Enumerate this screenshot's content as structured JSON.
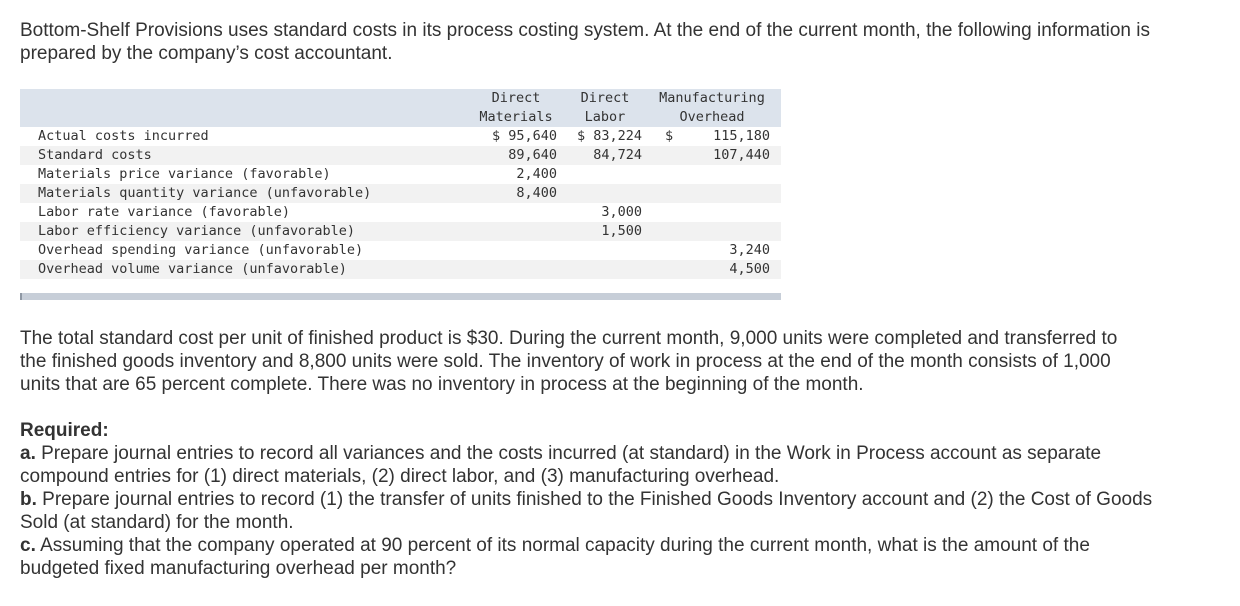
{
  "intro": [
    "Bottom-Shelf Provisions uses standard costs in its process costing system. At the end of the current month, the following information is",
    "prepared by the company’s cost accountant."
  ],
  "table": {
    "headers": {
      "col1": "Direct\nMaterials",
      "col2": "Direct\nLabor",
      "col3": "Manufacturing\nOverhead"
    },
    "rows": [
      {
        "label": "Actual costs incurred",
        "c1": "$ 95,640",
        "c2": "$ 83,224",
        "c3_dollar": "$",
        "c3": "115,180"
      },
      {
        "label": "Standard costs",
        "c1": "89,640",
        "c2": "84,724",
        "c3_dollar": "",
        "c3": "107,440"
      },
      {
        "label": "Materials price variance (favorable)",
        "c1": "2,400",
        "c2": "",
        "c3_dollar": "",
        "c3": ""
      },
      {
        "label": "Materials quantity variance (unfavorable)",
        "c1": "8,400",
        "c2": "",
        "c3_dollar": "",
        "c3": ""
      },
      {
        "label": "Labor rate variance (favorable)",
        "c1": "",
        "c2": "3,000",
        "c3_dollar": "",
        "c3": ""
      },
      {
        "label": "Labor efficiency variance (unfavorable)",
        "c1": "",
        "c2": "1,500",
        "c3_dollar": "",
        "c3": ""
      },
      {
        "label": "Overhead spending variance (unfavorable)",
        "c1": "",
        "c2": "",
        "c3_dollar": "",
        "c3": "3,240"
      },
      {
        "label": "Overhead volume variance (unfavorable)",
        "c1": "",
        "c2": "",
        "c3_dollar": "",
        "c3": "4,500"
      }
    ]
  },
  "body": [
    "The total standard cost per unit of finished product is $30. During the current month, 9,000 units were completed and transferred to",
    "the finished goods inventory and 8,800 units were sold. The inventory of work in process at the end of the month consists of 1,000",
    "units that are 65 percent complete. There was no inventory in process at the beginning of the month."
  ],
  "required": {
    "heading": "Required:",
    "items": [
      {
        "letter": "a.",
        "lines": [
          " Prepare journal entries to record all variances and the costs incurred (at standard) in the Work in Process account as separate",
          "compound entries for (1) direct materials, (2) direct labor, and (3) manufacturing overhead."
        ]
      },
      {
        "letter": "b.",
        "lines": [
          " Prepare journal entries to record (1) the transfer of units finished to the Finished Goods Inventory account and (2) the Cost of Goods",
          "Sold (at standard) for the month."
        ]
      },
      {
        "letter": "c.",
        "lines": [
          " Assuming that the company operated at 90 percent of its normal capacity during the current month, what is the amount of the",
          "budgeted fixed manufacturing overhead per month?"
        ]
      }
    ]
  }
}
